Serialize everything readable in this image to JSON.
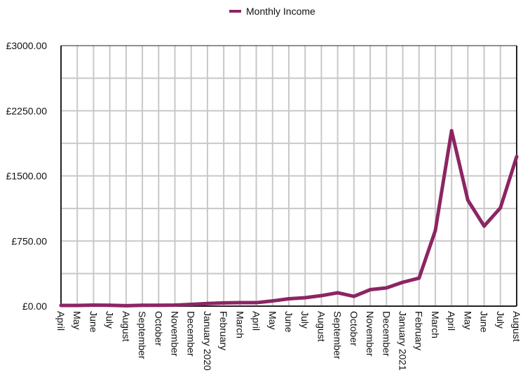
{
  "chart_data": {
    "type": "line",
    "title": "",
    "xlabel": "",
    "ylabel": "",
    "legend": {
      "position": "top-center",
      "entries": [
        "Monthly Income"
      ]
    },
    "categories": [
      "April",
      "May",
      "June",
      "July",
      "August",
      "September",
      "October",
      "November",
      "December",
      "January 2020",
      "February",
      "March",
      "April",
      "May",
      "June",
      "July",
      "August",
      "September",
      "October",
      "November",
      "December",
      "January 2021",
      "February",
      "March",
      "April",
      "May",
      "June",
      "July",
      "August"
    ],
    "series": [
      {
        "name": "Monthly Income",
        "color": "#8c2563",
        "values": [
          8,
          8,
          12,
          10,
          5,
          10,
          10,
          12,
          20,
          30,
          37,
          40,
          40,
          60,
          85,
          97,
          121,
          154,
          113,
          190,
          210,
          275,
          323,
          870,
          2020,
          1220,
          922,
          1132,
          1722
        ]
      }
    ],
    "ylim": [
      0,
      3000
    ],
    "yticks": [
      0,
      750,
      1500,
      2250,
      3000
    ],
    "ytick_labels": [
      "£0.00",
      "£750.00",
      "£1500.00",
      "£2250.00",
      "£3000.00"
    ],
    "grid": true
  }
}
